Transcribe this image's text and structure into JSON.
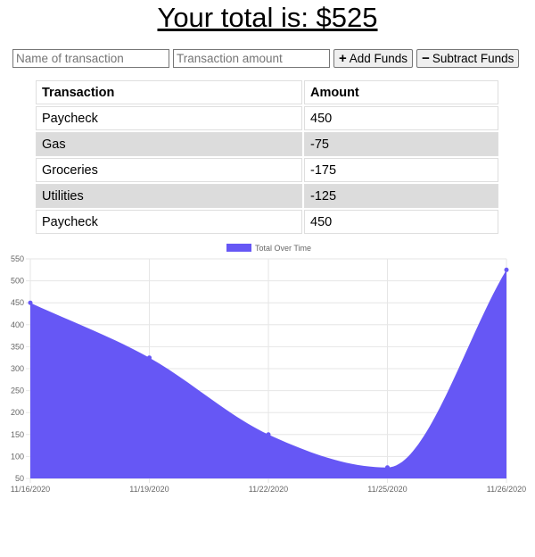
{
  "header": {
    "total_text": "Your total is: $525"
  },
  "form": {
    "name_placeholder": "Name of transaction",
    "amount_placeholder": "Transaction amount",
    "add_label": "Add Funds",
    "subtract_label": "Subtract Funds"
  },
  "table": {
    "headers": [
      "Transaction",
      "Amount"
    ],
    "rows": [
      {
        "name": "Paycheck",
        "amount": "450"
      },
      {
        "name": "Gas",
        "amount": "-75"
      },
      {
        "name": "Groceries",
        "amount": "-175"
      },
      {
        "name": "Utilities",
        "amount": "-125"
      },
      {
        "name": "Paycheck",
        "amount": "450"
      }
    ]
  },
  "chart_data": {
    "type": "area",
    "series": [
      {
        "name": "Total Over Time",
        "x": [
          "11/16/2020",
          "11/19/2020",
          "11/22/2020",
          "11/25/2020",
          "11/26/2020"
        ],
        "values": [
          450,
          325,
          150,
          75,
          525
        ],
        "color": "#6657f5"
      }
    ],
    "x_ticks": [
      "11/16/2020",
      "11/19/2020",
      "11/22/2020",
      "11/25/2020",
      "11/26/2020"
    ],
    "y_ticks": [
      50,
      100,
      150,
      200,
      250,
      300,
      350,
      400,
      450,
      500,
      550
    ],
    "ylim": [
      50,
      550
    ],
    "legend_position": "top-center",
    "grid": true
  },
  "icons": {
    "add": "plus-icon",
    "subtract": "minus-icon"
  }
}
